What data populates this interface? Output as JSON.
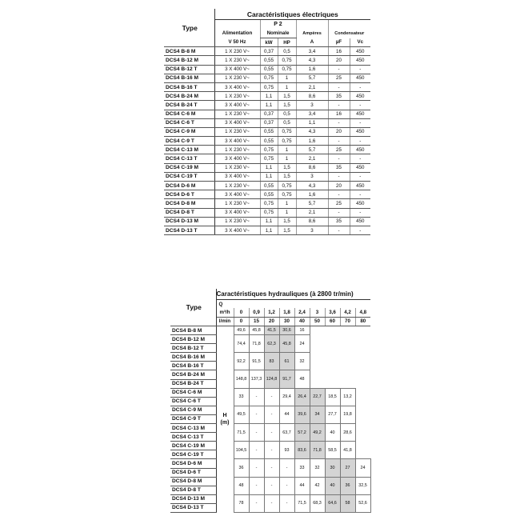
{
  "electrical": {
    "title": "Caractéristiques électriques",
    "type_label": "Type",
    "alimentation_label": "Alimentation",
    "alimentation_unit": "V 50 Hz",
    "p2_label": "P 2",
    "nominale_label": "Nominale",
    "kw_label": "kW",
    "hp_label": "HP",
    "amperes_label": "Ampères",
    "amperes_unit": "A",
    "condensateur_label": "Condensateur",
    "uf_label": "µF",
    "vc_label": "Vc",
    "rows": [
      [
        "DCS4 B-8 M",
        "1 X 230 V~",
        "0,37",
        "0,5",
        "3,4",
        "16",
        "450"
      ],
      [
        "DCS4 B-12 M",
        "1 X 230 V~",
        "0,55",
        "0,75",
        "4,3",
        "20",
        "450"
      ],
      [
        "DCS4 B-12 T",
        "3 X 400 V~",
        "0,55",
        "0,75",
        "1,6",
        "-",
        "-"
      ],
      [
        "DCS4 B-16 M",
        "1 X 230 V~",
        "0,75",
        "1",
        "5,7",
        "25",
        "450"
      ],
      [
        "DCS4 B-16 T",
        "3 X 400 V~",
        "0,75",
        "1",
        "2,1",
        "-",
        "-"
      ],
      [
        "DCS4 B-24 M",
        "1 X 230 V~",
        "1,1",
        "1,5",
        "8,6",
        "35",
        "450"
      ],
      [
        "DCS4 B-24 T",
        "3 X 400 V~",
        "1,1",
        "1,5",
        "3",
        "-",
        "-"
      ],
      [
        "DCS4 C-6 M",
        "1 X 230 V~",
        "0,37",
        "0,5",
        "3,4",
        "16",
        "450"
      ],
      [
        "DCS4 C-6 T",
        "3 X 400 V~",
        "0,37",
        "0,5",
        "1,1",
        "-",
        "-"
      ],
      [
        "DCS4 C-9 M",
        "1 X 230 V~",
        "0,55",
        "0,75",
        "4,3",
        "20",
        "450"
      ],
      [
        "DCS4 C-9 T",
        "3 X 400 V~",
        "0,55",
        "0,75",
        "1,6",
        "-",
        "-"
      ],
      [
        "DCS4 C-13 M",
        "1 X 230 V~",
        "0,75",
        "1",
        "5,7",
        "25",
        "450"
      ],
      [
        "DCS4 C-13 T",
        "3 X 400 V~",
        "0,75",
        "1",
        "2,1",
        "-",
        "-"
      ],
      [
        "DCS4 C-19 M",
        "1 X 230 V~",
        "1,1",
        "1,5",
        "8,6",
        "35",
        "450"
      ],
      [
        "DCS4 C-19 T",
        "3 X 400 V~",
        "1,1",
        "1,5",
        "3",
        "-",
        "-"
      ],
      [
        "DCS4 D-6 M",
        "1 X 230 V~",
        "0,55",
        "0,75",
        "4,3",
        "20",
        "450"
      ],
      [
        "DCS4 D-6 T",
        "3 X 400 V~",
        "0,55",
        "0,75",
        "1,6",
        "-",
        "-"
      ],
      [
        "DCS4 D-8 M",
        "1 X 230 V~",
        "0,75",
        "1",
        "5,7",
        "25",
        "450"
      ],
      [
        "DCS4 D-8 T",
        "3 X 400 V~",
        "0,75",
        "1",
        "2,1",
        "-",
        "-"
      ],
      [
        "DCS4 D-13 M",
        "1 X 230 V~",
        "1,1",
        "1,5",
        "8,6",
        "35",
        "450"
      ],
      [
        "DCS4 D-13 T",
        "3 X 400 V~",
        "1,1",
        "1,5",
        "3",
        "-",
        "-"
      ]
    ]
  },
  "hydraulic": {
    "title": "Caractéristiques hydrauliques (à 2800 tr/min)",
    "type_label": "Type",
    "q_label": "Q",
    "m3h_label": "m³/h",
    "lmin_label": "l/min",
    "h_label": "H",
    "h_unit": "(m)",
    "m3h": [
      "0",
      "0,9",
      "1,2",
      "1,8",
      "2,4",
      "3",
      "3,6",
      "4,2",
      "4,8"
    ],
    "lmin": [
      "0",
      "15",
      "20",
      "30",
      "40",
      "50",
      "60",
      "70",
      "80"
    ],
    "shade_color": "#d4d4d4",
    "groups": [
      {
        "types": [
          "DCS4 B-8 M"
        ],
        "values": [
          "49,6",
          "45,8",
          "41,5",
          "30,6",
          "16",
          "",
          "",
          "",
          ""
        ],
        "shaded": [
          2,
          3
        ]
      },
      {
        "types": [
          "DCS4 B-12 M",
          "DCS4 B-12 T"
        ],
        "values": [
          "74,4",
          "71,8",
          "62,3",
          "45,8",
          "24",
          "",
          "",
          "",
          ""
        ],
        "shaded": [
          2,
          3
        ]
      },
      {
        "types": [
          "DCS4 B-16 M",
          "DCS4 B-16 T"
        ],
        "values": [
          "92,2",
          "91,5",
          "83",
          "61",
          "32",
          "",
          "",
          "",
          ""
        ],
        "shaded": [
          2,
          3
        ]
      },
      {
        "types": [
          "DCS4 B-24 M",
          "DCS4 B-24 T"
        ],
        "values": [
          "148,8",
          "137,3",
          "124,8",
          "91,7",
          "48",
          "",
          "",
          "",
          ""
        ],
        "shaded": [
          2,
          3
        ]
      },
      {
        "types": [
          "DCS4 C-6 M",
          "DCS4 C-6 T"
        ],
        "values": [
          "33",
          "-",
          "-",
          "29,4",
          "26,4",
          "22,7",
          "18,5",
          "13,2",
          ""
        ],
        "shaded": [
          4,
          5
        ]
      },
      {
        "types": [
          "DCS4 C-9 M",
          "DCS4 C-9 T"
        ],
        "values": [
          "49,5",
          "-",
          "-",
          "44",
          "39,6",
          "34",
          "27,7",
          "19,8",
          ""
        ],
        "shaded": [
          4,
          5
        ]
      },
      {
        "types": [
          "DCS4 C-13 M",
          "DCS4 C-13 T"
        ],
        "values": [
          "71,5",
          "-",
          "-",
          "63,7",
          "57,2",
          "49,2",
          "40",
          "28,6",
          ""
        ],
        "shaded": [
          4,
          5
        ]
      },
      {
        "types": [
          "DCS4 C-19 M",
          "DCS4 C-19 T"
        ],
        "values": [
          "104,5",
          "-",
          "-",
          "93",
          "83,6",
          "71,8",
          "58,5",
          "41,8",
          ""
        ],
        "shaded": [
          4,
          5
        ]
      },
      {
        "types": [
          "DCS4 D-6 M",
          "DCS4 D-6 T"
        ],
        "values": [
          "36",
          "-",
          "-",
          "-",
          "33",
          "32",
          "30",
          "27",
          "24"
        ],
        "shaded": [
          6,
          7
        ]
      },
      {
        "types": [
          "DCS4 D-8 M",
          "DCS4 D-8 T"
        ],
        "values": [
          "48",
          "-",
          "-",
          "-",
          "44",
          "42",
          "40",
          "36",
          "32,5"
        ],
        "shaded": [
          6,
          7
        ]
      },
      {
        "types": [
          "DCS4 D-13 M",
          "DCS4 D-13 T"
        ],
        "values": [
          "78",
          "-",
          "-",
          "-",
          "71,5",
          "68,3",
          "64,6",
          "58",
          "52,6"
        ],
        "shaded": [
          6,
          7
        ]
      }
    ]
  }
}
